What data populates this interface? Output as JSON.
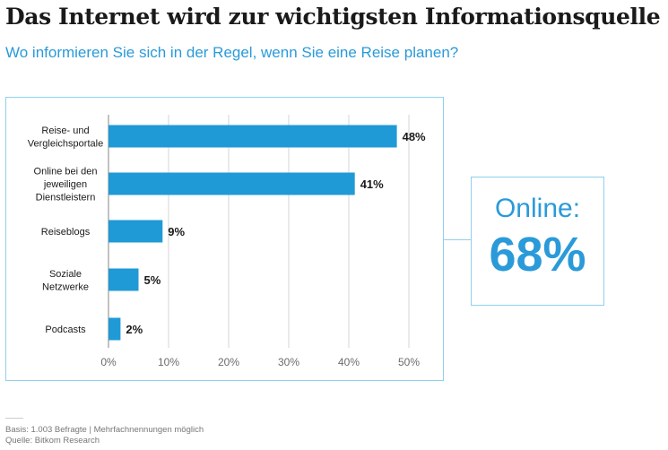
{
  "title": "Das Internet wird zur wichtigsten Informationsquelle",
  "subtitle": "Wo informieren Sie sich in der Regel, wenn Sie eine Reise planen?",
  "highlight": {
    "label": "Online:",
    "value": "68%"
  },
  "footer": {
    "basis": "Basis: 1.003 Befragte | Mehrfachnennungen möglich",
    "source": "Quelle: Bitkom Research"
  },
  "colors": {
    "bar": "#1f9ad6",
    "accent": "#2a9ad9",
    "frame": "#8fd0ee",
    "grid": "#d6d6d6"
  },
  "chart_data": {
    "type": "bar",
    "orientation": "horizontal",
    "categories": [
      [
        "Reise- und",
        "Vergleichsportale"
      ],
      [
        "Online bei den",
        "jeweiligen",
        "Dienstleistern"
      ],
      [
        "Reiseblogs"
      ],
      [
        "Soziale",
        "Netzwerke"
      ],
      [
        "Podcasts"
      ]
    ],
    "values": [
      48,
      41,
      9,
      5,
      2
    ],
    "value_labels": [
      "48%",
      "41%",
      "9%",
      "5%",
      "2%"
    ],
    "xticks": [
      "0%",
      "10%",
      "20%",
      "30%",
      "40%",
      "50%"
    ],
    "xlim": [
      0,
      50
    ],
    "grid": true
  }
}
